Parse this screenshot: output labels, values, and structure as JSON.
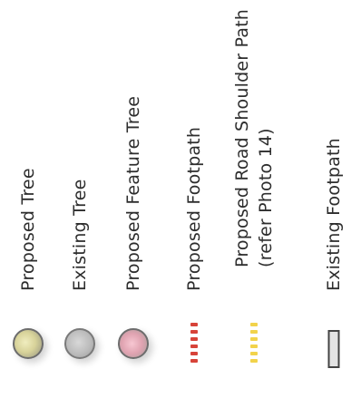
{
  "legend": {
    "items": [
      {
        "key": "proposed-tree",
        "label": "Proposed Tree",
        "symbol": "circle",
        "color": "#d8d39a"
      },
      {
        "key": "existing-tree",
        "label": "Existing Tree",
        "symbol": "circle",
        "color": "#bcbcbc"
      },
      {
        "key": "proposed-feature-tree",
        "label": "Proposed Feature Tree",
        "symbol": "circle",
        "color": "#e0a3b1"
      },
      {
        "key": "proposed-footpath",
        "label": "Proposed Footpath",
        "symbol": "dashed-line",
        "color": "#d74339"
      },
      {
        "key": "proposed-road-shoulder-path",
        "label_line1": "Proposed Road Shoulder Path",
        "label_line2": "(refer Photo 14)",
        "symbol": "dashed-line",
        "color": "#f2d34b"
      },
      {
        "key": "existing-footpath",
        "label": "Existing Footpath",
        "symbol": "rectangle",
        "color": "#e3e3e3"
      }
    ]
  }
}
